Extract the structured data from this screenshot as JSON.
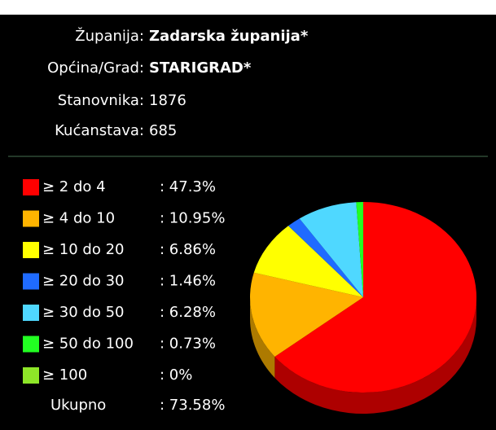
{
  "info": [
    {
      "label": "Županija:",
      "value": "Zadarska županija*"
    },
    {
      "label": "Općina/Grad:",
      "value": "STARIGRAD*"
    },
    {
      "label": "Stanovnika:",
      "value": "1876"
    },
    {
      "label": "Kućanstava:",
      "value": "685"
    }
  ],
  "chart_data": {
    "type": "pie",
    "categories": [
      "≥ 2 do 4",
      "≥ 4 do 10",
      "≥ 10 do 20",
      "≥ 20 do 30",
      "≥ 30 do 50",
      "≥ 50 do 100",
      "≥ 100"
    ],
    "values": [
      47.3,
      10.95,
      6.86,
      1.46,
      6.28,
      0.73,
      0
    ],
    "value_labels": [
      ": 47.3%",
      ": 10.95%",
      ": 6.86%",
      ": 1.46%",
      ": 6.28%",
      ": 0.73%",
      ": 0%"
    ],
    "colors": [
      "#ff0000",
      "#ffb400",
      "#ffff00",
      "#1f6bff",
      "#4fd8ff",
      "#22ff22",
      "#8ee628"
    ],
    "total_name": "Ukupno",
    "total": 73.58,
    "total_label": ": 73.58%"
  }
}
